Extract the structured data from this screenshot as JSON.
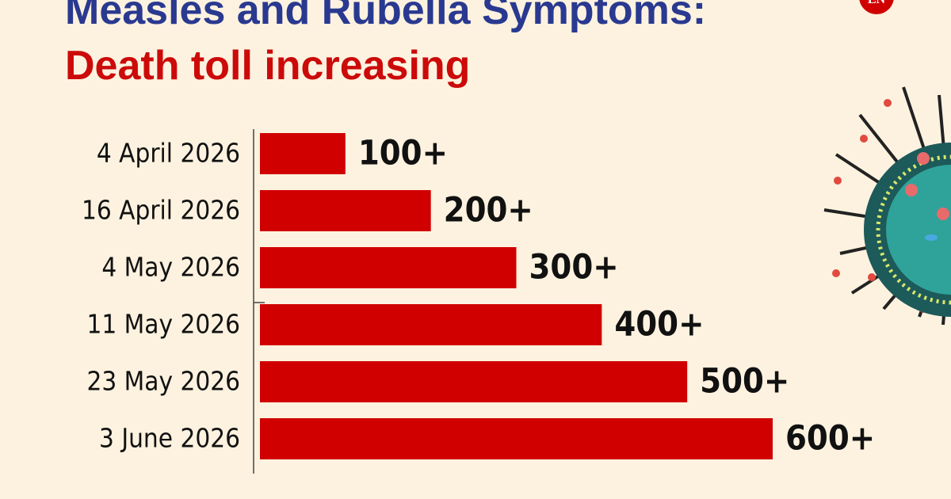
{
  "chart_data": {
    "type": "hbar",
    "title": "Measles and Rubella Symptoms:",
    "subtitle": "Death toll increasing",
    "logo": "EN",
    "categories": [
      "4 April 2026",
      "16 April 2026",
      "4 May 2026",
      "11 May 2026",
      "23 May 2026",
      "3 June 2026"
    ],
    "values": [
      100,
      200,
      300,
      400,
      500,
      600
    ],
    "value_labels": [
      "100+",
      "200+",
      "300+",
      "400+",
      "500+",
      "600+"
    ],
    "color": "#d10000"
  }
}
